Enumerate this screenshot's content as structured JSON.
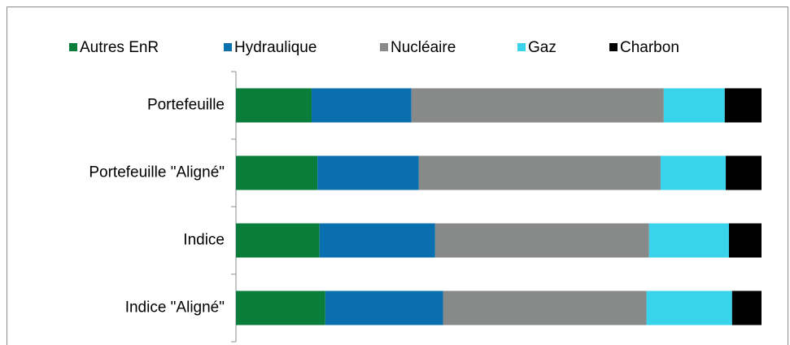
{
  "chart_data": {
    "type": "stacked-bar-horizontal",
    "categories": [
      "Portefeuille",
      "Portefeuille \"Aligné\"",
      "Indice",
      "Indice \"Aligné\""
    ],
    "series": [
      {
        "name": "Autres EnR",
        "color": "#0a7d3a",
        "values": [
          14.4,
          15.5,
          15.9,
          17.0
        ]
      },
      {
        "name": "Hydraulique",
        "color": "#0a6fae",
        "values": [
          19.0,
          19.3,
          22.0,
          22.4
        ]
      },
      {
        "name": "Nucléaire",
        "color": "#888a8a",
        "values": [
          48.0,
          46.0,
          40.7,
          38.7
        ]
      },
      {
        "name": "Gaz",
        "color": "#3ad3ec",
        "values": [
          11.6,
          12.4,
          15.2,
          16.3
        ]
      },
      {
        "name": "Charbon",
        "color": "#000000",
        "values": [
          7.0,
          6.8,
          6.2,
          5.6
        ]
      }
    ],
    "legend": "top"
  }
}
